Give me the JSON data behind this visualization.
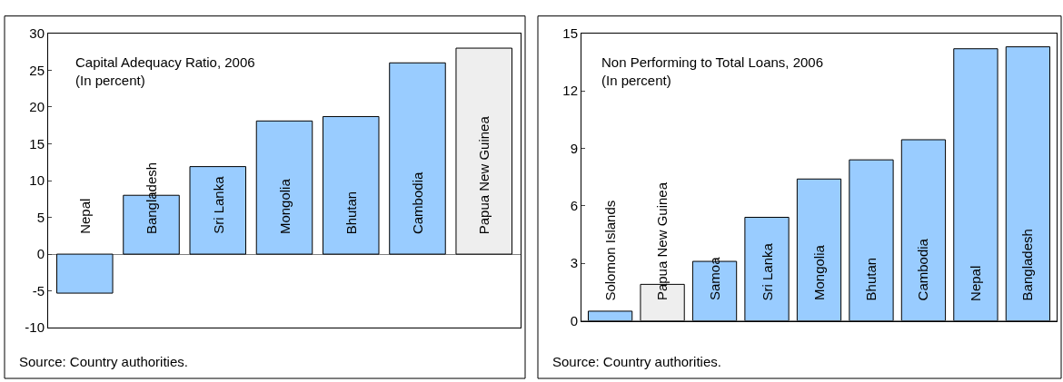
{
  "chart_data": [
    {
      "type": "bar",
      "title": "Capital Adequacy Ratio, 2006",
      "subtitle": "(In percent)",
      "categories": [
        "Nepal",
        "Bangladesh",
        "Sri Lanka",
        "Mongolia",
        "Bhutan",
        "Cambodia",
        "Papua New Guinea"
      ],
      "values": [
        -5.3,
        8,
        11.9,
        18.1,
        18.7,
        26,
        28
      ],
      "colors": [
        "#99ccff",
        "#99ccff",
        "#99ccff",
        "#99ccff",
        "#99ccff",
        "#99ccff",
        "#eeeeee"
      ],
      "ylim": [
        -10,
        30
      ],
      "yticks": [
        -10,
        -5,
        0,
        5,
        10,
        15,
        20,
        25,
        30
      ],
      "tick_labels": "y",
      "annotations": [
        "Source: Country authorities."
      ]
    },
    {
      "type": "bar",
      "title": "Non Performing to Total Loans, 2006",
      "subtitle": "(In percent)",
      "categories": [
        "Solomon Islands",
        "Papua New Guinea",
        "Samoa",
        "Sri Lanka",
        "Mongolia",
        "Bhutan",
        "Cambodia",
        "Nepal",
        "Bangladesh"
      ],
      "values": [
        0.5,
        1.9,
        3.1,
        5.4,
        7.4,
        8.4,
        9.45,
        14.2,
        14.3
      ],
      "colors": [
        "#99ccff",
        "#eeeeee",
        "#99ccff",
        "#99ccff",
        "#99ccff",
        "#99ccff",
        "#99ccff",
        "#99ccff",
        "#99ccff"
      ],
      "ylim": [
        0,
        15
      ],
      "yticks": [
        0,
        3,
        6,
        9,
        12,
        15
      ],
      "tick_labels": "y",
      "annotations": [
        "Source: Country authorities."
      ]
    }
  ]
}
